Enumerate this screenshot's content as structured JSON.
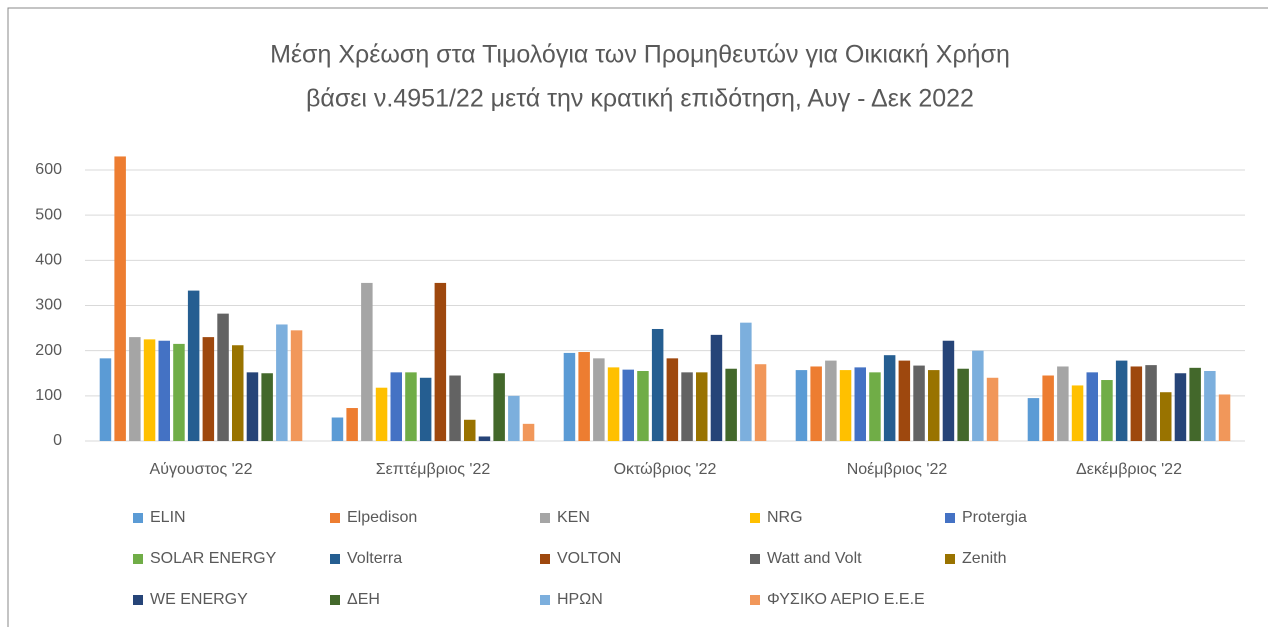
{
  "chart_data": {
    "type": "bar",
    "title": "Μέση Χρέωση στα Τιμολόγια των Προμηθευτών για Οικιακή Χρήση",
    "subtitle": "βάσει ν.4951/22 μετά την κρατική επιδότηση, Αυγ - Δεκ 2022",
    "categories": [
      "Αύγουστος '22",
      "Σεπτέμβριος '22",
      "Οκτώβριος '22",
      "Νοέμβριος '22",
      "Δεκέμβριος '22"
    ],
    "series": [
      {
        "name": "ELIN",
        "color": "#5b9bd5",
        "values": [
          183,
          52,
          195,
          157,
          95
        ]
      },
      {
        "name": "Elpedison",
        "color": "#ed7d31",
        "values": [
          630,
          73,
          197,
          165,
          145
        ]
      },
      {
        "name": "KEN",
        "color": "#a5a5a5",
        "values": [
          230,
          350,
          183,
          178,
          165
        ]
      },
      {
        "name": "NRG",
        "color": "#ffc000",
        "values": [
          225,
          118,
          163,
          157,
          123
        ]
      },
      {
        "name": "Protergia",
        "color": "#4472c4",
        "values": [
          222,
          152,
          158,
          163,
          152
        ]
      },
      {
        "name": "SOLAR ENERGY",
        "color": "#70ad47",
        "values": [
          215,
          152,
          155,
          152,
          135
        ]
      },
      {
        "name": "Volterra",
        "color": "#255e91",
        "values": [
          333,
          140,
          248,
          190,
          178
        ]
      },
      {
        "name": "VOLTON",
        "color": "#9e480e",
        "values": [
          230,
          350,
          183,
          178,
          165
        ]
      },
      {
        "name": "Watt and Volt",
        "color": "#636363",
        "values": [
          282,
          145,
          152,
          167,
          168
        ]
      },
      {
        "name": "Zenith",
        "color": "#997300",
        "values": [
          212,
          47,
          152,
          157,
          108
        ]
      },
      {
        "name": "WE ENERGY",
        "color": "#264478",
        "values": [
          152,
          10,
          235,
          222,
          150
        ]
      },
      {
        "name": "ΔΕΗ",
        "color": "#43682b",
        "values": [
          150,
          150,
          160,
          160,
          162
        ]
      },
      {
        "name": "ΗΡΩΝ",
        "color": "#7cafdd",
        "values": [
          258,
          100,
          262,
          200,
          155
        ]
      },
      {
        "name": "ΦΥΣΙΚΟ ΑΕΡΙΟ Ε.Ε.Ε",
        "color": "#f1975a",
        "values": [
          245,
          38,
          170,
          140,
          103
        ]
      }
    ],
    "ylim": [
      0,
      600
    ],
    "yticks": [
      0,
      100,
      200,
      300,
      400,
      500,
      600
    ],
    "grid": true,
    "legend": "bottom"
  }
}
